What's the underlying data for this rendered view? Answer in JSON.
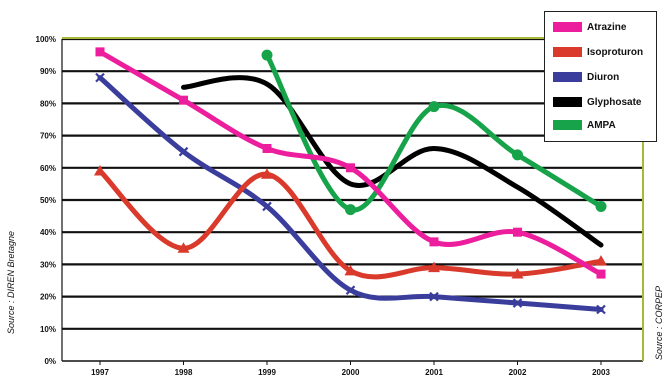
{
  "chart_data": {
    "type": "line",
    "categories": [
      "1997",
      "1998",
      "1999",
      "2000",
      "2001",
      "2002",
      "2003"
    ],
    "y_ticks": [
      "0%",
      "10%",
      "20%",
      "30%",
      "40%",
      "50%",
      "60%",
      "70%",
      "80%",
      "90%",
      "100%"
    ],
    "ylim": [
      0,
      100
    ],
    "grid": true,
    "legend_position": "top-right",
    "series": [
      {
        "name": "Atrazine",
        "color": "#ec1e9d",
        "marker": "square",
        "values": [
          96,
          81,
          66,
          60,
          37,
          40,
          27
        ]
      },
      {
        "name": "Isoproturon",
        "color": "#d93a2b",
        "marker": "triangle",
        "values": [
          59,
          35,
          58,
          28,
          29,
          27,
          31
        ]
      },
      {
        "name": "Diuron",
        "color": "#3a3d9c",
        "marker": "x",
        "values": [
          88,
          65,
          48,
          22,
          20,
          18,
          16
        ]
      },
      {
        "name": "Glyphosate",
        "color": "#000000",
        "marker": "none",
        "values": [
          null,
          85,
          86,
          55,
          66,
          54,
          36
        ]
      },
      {
        "name": "AMPA",
        "color": "#16a34a",
        "marker": "circle",
        "values": [
          null,
          null,
          95,
          47,
          79,
          64,
          48
        ]
      }
    ],
    "source_left": "Source : DIREN Bretagne",
    "source_right": "Source : CORPEP"
  }
}
